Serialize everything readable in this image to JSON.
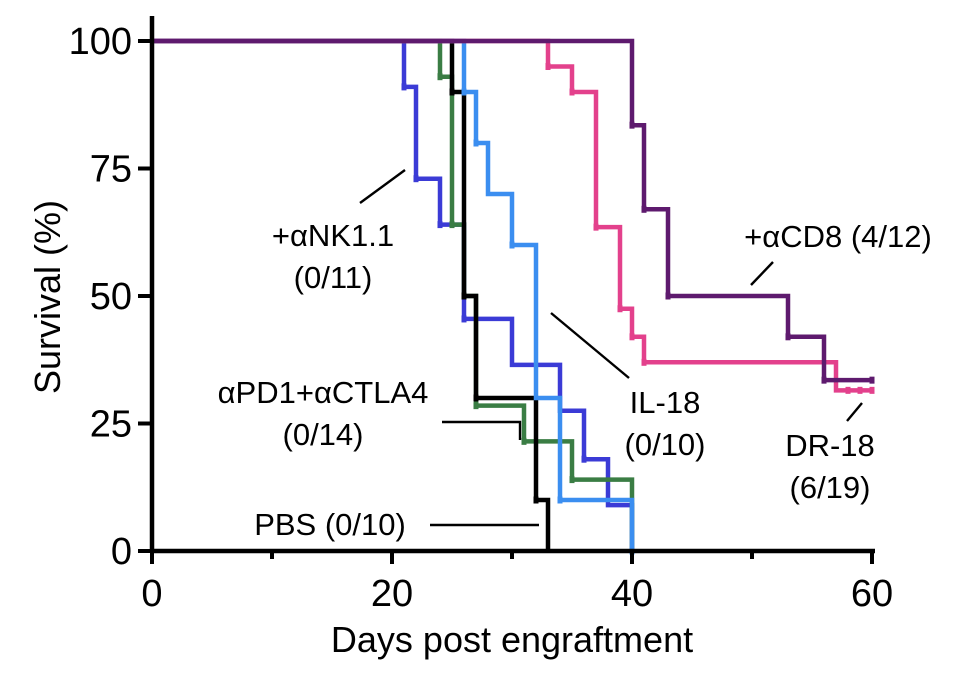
{
  "chart_data": {
    "type": "line",
    "subtype": "kaplan-meier-step",
    "title": "",
    "xlabel": "Days post engraftment",
    "ylabel": "Survival (%)",
    "xlim": [
      0,
      60
    ],
    "ylim": [
      0,
      100
    ],
    "x_ticks": [
      0,
      20,
      40,
      60
    ],
    "x_minor_ticks": [
      10,
      30,
      50
    ],
    "y_ticks": [
      0,
      25,
      50,
      75,
      100
    ],
    "grid": false,
    "legend": "none (direct labels)",
    "series": [
      {
        "name": "+αNK1.1 (0/11)",
        "color": "#3b3bd6",
        "points": [
          [
            0,
            100
          ],
          [
            21,
            100
          ],
          [
            21,
            91
          ],
          [
            22,
            91
          ],
          [
            22,
            73
          ],
          [
            24,
            73
          ],
          [
            24,
            64
          ],
          [
            26,
            64
          ],
          [
            26,
            45.5
          ],
          [
            27,
            45.5
          ],
          [
            27,
            45.5
          ],
          [
            30,
            45.5
          ],
          [
            30,
            36.5
          ],
          [
            34,
            36.5
          ],
          [
            34,
            27.5
          ],
          [
            36,
            27.5
          ],
          [
            36,
            18
          ],
          [
            38,
            18
          ],
          [
            38,
            9
          ],
          [
            40,
            9
          ],
          [
            40,
            0
          ]
        ]
      },
      {
        "name": "αPD1+αCTLA4 (0/14)",
        "color": "#3a7d44",
        "points": [
          [
            0,
            100
          ],
          [
            24,
            100
          ],
          [
            24,
            93
          ],
          [
            25,
            93
          ],
          [
            25,
            64
          ],
          [
            26,
            64
          ],
          [
            26,
            50
          ],
          [
            27,
            50
          ],
          [
            27,
            28.5
          ],
          [
            31,
            28.5
          ],
          [
            31,
            21.5
          ],
          [
            35,
            21.5
          ],
          [
            35,
            14
          ],
          [
            40,
            14
          ],
          [
            40,
            0
          ]
        ]
      },
      {
        "name": "PBS (0/10)",
        "color": "#000000",
        "points": [
          [
            0,
            100
          ],
          [
            25,
            100
          ],
          [
            25,
            90
          ],
          [
            26,
            90
          ],
          [
            26,
            50
          ],
          [
            27,
            50
          ],
          [
            27,
            30
          ],
          [
            32,
            30
          ],
          [
            32,
            10
          ],
          [
            33,
            10
          ],
          [
            33,
            0
          ]
        ]
      },
      {
        "name": "IL-18 (0/10)",
        "color": "#3b8ef0",
        "points": [
          [
            0,
            100
          ],
          [
            26,
            100
          ],
          [
            26,
            90
          ],
          [
            27,
            90
          ],
          [
            27,
            80
          ],
          [
            28,
            80
          ],
          [
            28,
            70
          ],
          [
            30,
            70
          ],
          [
            30,
            60
          ],
          [
            32,
            60
          ],
          [
            32,
            30
          ],
          [
            34,
            30
          ],
          [
            34,
            10
          ],
          [
            40,
            10
          ],
          [
            40,
            0
          ]
        ]
      },
      {
        "name": "DR-18 (6/19)",
        "color": "#e3418c",
        "points": [
          [
            0,
            100
          ],
          [
            33,
            100
          ],
          [
            33,
            95
          ],
          [
            35,
            95
          ],
          [
            35,
            90
          ],
          [
            37,
            90
          ],
          [
            37,
            63.5
          ],
          [
            39,
            63.5
          ],
          [
            39,
            47.5
          ],
          [
            40,
            47.5
          ],
          [
            40,
            42
          ],
          [
            41,
            42
          ],
          [
            41,
            37
          ],
          [
            57,
            37
          ],
          [
            57,
            31.5
          ],
          [
            60,
            31.5
          ]
        ]
      },
      {
        "name": "+αCD8 (4/12)",
        "color": "#5e1a6e",
        "points": [
          [
            0,
            100
          ],
          [
            40,
            100
          ],
          [
            40,
            83.5
          ],
          [
            41,
            83.5
          ],
          [
            41,
            67
          ],
          [
            43,
            67
          ],
          [
            43,
            50
          ],
          [
            53,
            50
          ],
          [
            53,
            42
          ],
          [
            56,
            42
          ],
          [
            56,
            33.5
          ],
          [
            60,
            33.5
          ]
        ]
      }
    ],
    "censor_marks": [
      {
        "series": 0,
        "points": [
          [
            21,
            91
          ],
          [
            22,
            73
          ],
          [
            24,
            64
          ],
          [
            26,
            45.5
          ],
          [
            36,
            18
          ]
        ]
      },
      {
        "series": 1,
        "points": [
          [
            24,
            93
          ],
          [
            25,
            64
          ],
          [
            27,
            28.5
          ],
          [
            31,
            21.5
          ],
          [
            35,
            14
          ]
        ]
      },
      {
        "series": 2,
        "points": [
          [
            25,
            90
          ],
          [
            26,
            50
          ],
          [
            27,
            30
          ],
          [
            32,
            10
          ]
        ]
      },
      {
        "series": 3,
        "points": [
          [
            26,
            90
          ],
          [
            27,
            80
          ],
          [
            30,
            60
          ],
          [
            34,
            10
          ],
          [
            40,
            0
          ]
        ]
      },
      {
        "series": 4,
        "points": [
          [
            33,
            95
          ],
          [
            35,
            90
          ],
          [
            37,
            63.5
          ],
          [
            39,
            47.5
          ],
          [
            40,
            42
          ],
          [
            41,
            37
          ],
          [
            58,
            31.5
          ],
          [
            59,
            31.5
          ],
          [
            60,
            31.5
          ]
        ]
      },
      {
        "series": 5,
        "points": [
          [
            40,
            83.5
          ],
          [
            41,
            67
          ],
          [
            43,
            50
          ],
          [
            53,
            42
          ],
          [
            56,
            33.5
          ],
          [
            60,
            33.5
          ]
        ]
      }
    ],
    "annotations": [
      {
        "lines": [
          "+αNK1.1",
          "(0/11)"
        ],
        "series": 0
      },
      {
        "lines": [
          "αPD1+αCTLA4",
          "(0/14)"
        ],
        "series": 1
      },
      {
        "lines": [
          "PBS (0/10)"
        ],
        "series": 2
      },
      {
        "lines": [
          "IL-18",
          "(0/10)"
        ],
        "series": 3
      },
      {
        "lines": [
          "DR-18",
          "(6/19)"
        ],
        "series": 4
      },
      {
        "lines": [
          "+αCD8 (4/12)"
        ],
        "series": 5
      }
    ]
  }
}
